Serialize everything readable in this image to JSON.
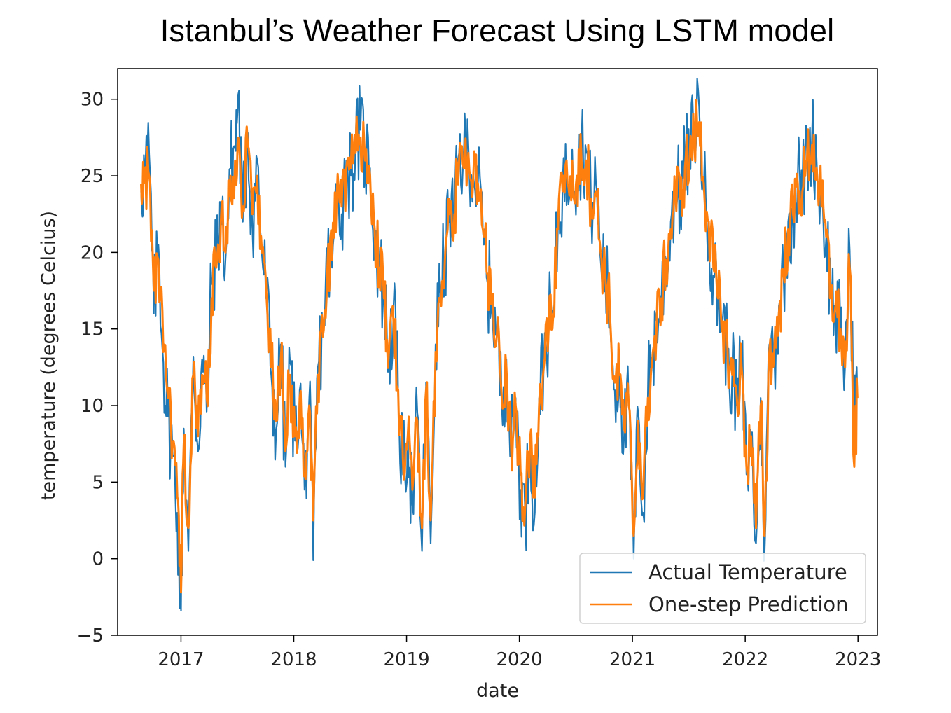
{
  "chart_data": {
    "type": "line",
    "title": "Istanbul’s Weather Forecast Using LSTM model",
    "xlabel": "date",
    "ylabel": "temperature (degrees Celcius)",
    "xlim": [
      "2016-06-10",
      "2023-03-05"
    ],
    "ylim": [
      -5,
      32
    ],
    "x_ticks": [
      "2017",
      "2018",
      "2019",
      "2020",
      "2021",
      "2022",
      "2023"
    ],
    "y_ticks": [
      -5,
      0,
      5,
      10,
      15,
      20,
      25,
      30
    ],
    "grid": false,
    "legend_position": "lower-right",
    "series": [
      {
        "name": "Actual Temperature",
        "color": "#1f77b4",
        "x": [
          "2016-08-25",
          "2016-09-05",
          "2016-09-20",
          "2016-10-05",
          "2016-10-20",
          "2016-11-05",
          "2016-11-20",
          "2016-12-05",
          "2016-12-20",
          "2017-01-01",
          "2017-01-10",
          "2017-01-25",
          "2017-02-10",
          "2017-02-25",
          "2017-03-10",
          "2017-03-25",
          "2017-04-10",
          "2017-04-25",
          "2017-05-10",
          "2017-05-25",
          "2017-06-10",
          "2017-06-25",
          "2017-07-05",
          "2017-07-20",
          "2017-08-05",
          "2017-08-20",
          "2017-09-05",
          "2017-09-20",
          "2017-10-05",
          "2017-10-20",
          "2017-11-05",
          "2017-11-20",
          "2017-12-05",
          "2017-12-20",
          "2018-01-05",
          "2018-01-20",
          "2018-02-05",
          "2018-02-20",
          "2018-03-05",
          "2018-03-20",
          "2018-04-05",
          "2018-04-20",
          "2018-05-05",
          "2018-05-20",
          "2018-06-05",
          "2018-06-20",
          "2018-07-05",
          "2018-07-20",
          "2018-08-05",
          "2018-08-20",
          "2018-09-05",
          "2018-09-20",
          "2018-10-05",
          "2018-10-20",
          "2018-11-05",
          "2018-11-20",
          "2018-12-05",
          "2018-12-20",
          "2019-01-05",
          "2019-01-20",
          "2019-02-05",
          "2019-02-20",
          "2019-03-05",
          "2019-03-20",
          "2019-04-05",
          "2019-04-20",
          "2019-05-05",
          "2019-05-20",
          "2019-06-05",
          "2019-06-20",
          "2019-07-05",
          "2019-07-20",
          "2019-08-05",
          "2019-08-20",
          "2019-09-05",
          "2019-09-20",
          "2019-10-05",
          "2019-10-20",
          "2019-11-05",
          "2019-11-20",
          "2019-12-05",
          "2019-12-20",
          "2020-01-05",
          "2020-01-20",
          "2020-02-05",
          "2020-02-20",
          "2020-03-05",
          "2020-03-20",
          "2020-04-05",
          "2020-04-20",
          "2020-05-05",
          "2020-05-20",
          "2020-06-05",
          "2020-06-20",
          "2020-07-05",
          "2020-07-20",
          "2020-08-05",
          "2020-08-20",
          "2020-09-05",
          "2020-09-20",
          "2020-10-05",
          "2020-10-20",
          "2020-11-05",
          "2020-11-20",
          "2020-12-05",
          "2020-12-20",
          "2021-01-05",
          "2021-01-20",
          "2021-02-05",
          "2021-02-20",
          "2021-03-05",
          "2021-03-20",
          "2021-04-05",
          "2021-04-20",
          "2021-05-05",
          "2021-05-20",
          "2021-06-05",
          "2021-06-20",
          "2021-07-05",
          "2021-07-20",
          "2021-08-05",
          "2021-08-20",
          "2021-09-05",
          "2021-09-20",
          "2021-10-05",
          "2021-10-20",
          "2021-11-05",
          "2021-11-20",
          "2021-12-05",
          "2021-12-20",
          "2022-01-05",
          "2022-01-20",
          "2022-02-05",
          "2022-02-20",
          "2022-03-05",
          "2022-03-20",
          "2022-04-05",
          "2022-04-20",
          "2022-05-05",
          "2022-05-20",
          "2022-06-05",
          "2022-06-20",
          "2022-07-05",
          "2022-07-20",
          "2022-08-05",
          "2022-08-20",
          "2022-09-05",
          "2022-09-20",
          "2022-10-05",
          "2022-10-20",
          "2022-11-05",
          "2022-11-20",
          "2022-12-05",
          "2022-12-20",
          "2022-12-30"
        ],
        "y": [
          24.0,
          25.4,
          26.4,
          16.0,
          20.5,
          12.8,
          9.3,
          6.8,
          3.0,
          -3.4,
          8.5,
          0.5,
          13.2,
          7.0,
          13.0,
          9.6,
          18.0,
          19.9,
          22.8,
          19.5,
          25.5,
          26.8,
          30.3,
          22.0,
          27.8,
          21.5,
          26.0,
          19.8,
          17.5,
          12.0,
          8.4,
          14.0,
          6.0,
          12.8,
          7.7,
          11.0,
          4.5,
          10.5,
          -0.1,
          12.5,
          15.0,
          19.5,
          19.0,
          24.2,
          22.5,
          26.0,
          25.0,
          27.0,
          28.0,
          26.5,
          25.5,
          21.0,
          19.0,
          17.0,
          13.0,
          16.5,
          10.5,
          5.5,
          8.0,
          3.5,
          9.5,
          0.5,
          11.5,
          1.0,
          14.0,
          17.5,
          19.5,
          23.0,
          22.0,
          26.5,
          26.0,
          27.0,
          25.0,
          24.5,
          21.5,
          18.0,
          17.0,
          14.5,
          10.0,
          13.0,
          7.0,
          10.5,
          4.5,
          2.5,
          8.0,
          3.0,
          10.5,
          13.0,
          15.5,
          15.8,
          22.0,
          24.5,
          24.5,
          26.7,
          25.0,
          27.0,
          26.5,
          23.0,
          24.5,
          19.5,
          18.5,
          16.0,
          11.0,
          12.5,
          8.0,
          10.0,
          0.0,
          9.5,
          3.0,
          11.0,
          13.0,
          15.5,
          17.0,
          19.5,
          22.0,
          24.5,
          23.5,
          26.0,
          26.0,
          28.5,
          29.5,
          24.0,
          22.0,
          18.5,
          17.0,
          15.5,
          13.5,
          12.0,
          10.0,
          13.0,
          5.5,
          8.0,
          1.0,
          10.5,
          0.5,
          14.0,
          13.5,
          16.5,
          18.5,
          22.0,
          22.5,
          25.0,
          24.0,
          26.5,
          27.5,
          26.0,
          23.0,
          21.0,
          17.5,
          16.0,
          15.0,
          12.5,
          20.2,
          9.5,
          10.5
        ]
      },
      {
        "name": "One-step Prediction",
        "color": "#ff7f0e",
        "x": [
          "2016-08-25",
          "2016-09-05",
          "2016-09-20",
          "2016-10-05",
          "2016-10-20",
          "2016-11-05",
          "2016-11-20",
          "2016-12-05",
          "2016-12-20",
          "2017-01-01",
          "2017-01-10",
          "2017-01-25",
          "2017-02-10",
          "2017-02-25",
          "2017-03-10",
          "2017-03-25",
          "2017-04-10",
          "2017-04-25",
          "2017-05-10",
          "2017-05-25",
          "2017-06-10",
          "2017-06-25",
          "2017-07-05",
          "2017-07-20",
          "2017-08-05",
          "2017-08-20",
          "2017-09-05",
          "2017-09-20",
          "2017-10-05",
          "2017-10-20",
          "2017-11-05",
          "2017-11-20",
          "2017-12-05",
          "2017-12-20",
          "2018-01-05",
          "2018-01-20",
          "2018-02-05",
          "2018-02-20",
          "2018-03-05",
          "2018-03-20",
          "2018-04-05",
          "2018-04-20",
          "2018-05-05",
          "2018-05-20",
          "2018-06-05",
          "2018-06-20",
          "2018-07-05",
          "2018-07-20",
          "2018-08-05",
          "2018-08-20",
          "2018-09-05",
          "2018-09-20",
          "2018-10-05",
          "2018-10-20",
          "2018-11-05",
          "2018-11-20",
          "2018-12-05",
          "2018-12-20",
          "2019-01-05",
          "2019-01-20",
          "2019-02-05",
          "2019-02-20",
          "2019-03-05",
          "2019-03-20",
          "2019-04-05",
          "2019-04-20",
          "2019-05-05",
          "2019-05-20",
          "2019-06-05",
          "2019-06-20",
          "2019-07-05",
          "2019-07-20",
          "2019-08-05",
          "2019-08-20",
          "2019-09-05",
          "2019-09-20",
          "2019-10-05",
          "2019-10-20",
          "2019-11-05",
          "2019-11-20",
          "2019-12-05",
          "2019-12-20",
          "2020-01-05",
          "2020-01-20",
          "2020-02-05",
          "2020-02-20",
          "2020-03-05",
          "2020-03-20",
          "2020-04-05",
          "2020-04-20",
          "2020-05-05",
          "2020-05-20",
          "2020-06-05",
          "2020-06-20",
          "2020-07-05",
          "2020-07-20",
          "2020-08-05",
          "2020-08-20",
          "2020-09-05",
          "2020-09-20",
          "2020-10-05",
          "2020-10-20",
          "2020-11-05",
          "2020-11-20",
          "2020-12-05",
          "2020-12-20",
          "2021-01-05",
          "2021-01-20",
          "2021-02-05",
          "2021-02-20",
          "2021-03-05",
          "2021-03-20",
          "2021-04-05",
          "2021-04-20",
          "2021-05-05",
          "2021-05-20",
          "2021-06-05",
          "2021-06-20",
          "2021-07-05",
          "2021-07-20",
          "2021-08-05",
          "2021-08-20",
          "2021-09-05",
          "2021-09-20",
          "2021-10-05",
          "2021-10-20",
          "2021-11-05",
          "2021-11-20",
          "2021-12-05",
          "2021-12-20",
          "2022-01-05",
          "2022-01-20",
          "2022-02-05",
          "2022-02-20",
          "2022-03-05",
          "2022-03-20",
          "2022-04-05",
          "2022-04-20",
          "2022-05-05",
          "2022-05-20",
          "2022-06-05",
          "2022-06-20",
          "2022-07-05",
          "2022-07-20",
          "2022-08-05",
          "2022-08-20",
          "2022-09-05",
          "2022-09-20",
          "2022-10-05",
          "2022-10-20",
          "2022-11-05",
          "2022-11-20",
          "2022-12-05",
          "2022-12-20",
          "2022-12-30"
        ],
        "y": [
          24.5,
          24.8,
          25.0,
          17.5,
          19.5,
          13.5,
          10.5,
          7.5,
          4.0,
          -2.2,
          7.5,
          2.0,
          12.0,
          8.0,
          12.0,
          10.5,
          17.0,
          19.0,
          22.0,
          20.0,
          25.0,
          26.0,
          27.5,
          23.0,
          27.0,
          22.5,
          25.0,
          20.0,
          17.0,
          12.5,
          9.0,
          13.0,
          7.0,
          12.0,
          8.0,
          10.5,
          5.5,
          10.0,
          2.5,
          12.0,
          14.5,
          19.0,
          19.5,
          23.5,
          23.0,
          25.5,
          25.5,
          26.5,
          27.5,
          26.0,
          25.0,
          21.5,
          19.0,
          17.0,
          13.5,
          15.5,
          11.0,
          6.5,
          8.0,
          4.5,
          9.0,
          2.0,
          11.0,
          2.5,
          13.5,
          17.0,
          19.5,
          22.5,
          22.5,
          26.0,
          25.5,
          26.5,
          25.0,
          24.5,
          21.5,
          18.5,
          17.0,
          14.5,
          10.5,
          12.5,
          7.5,
          10.0,
          5.5,
          3.5,
          8.0,
          4.0,
          10.0,
          12.5,
          15.0,
          16.0,
          21.5,
          24.0,
          24.5,
          26.0,
          25.0,
          26.0,
          26.0,
          23.5,
          24.0,
          20.0,
          18.5,
          16.0,
          11.5,
          12.0,
          8.5,
          10.0,
          1.5,
          9.0,
          4.0,
          10.5,
          12.5,
          15.0,
          17.0,
          19.5,
          21.5,
          24.0,
          23.5,
          25.5,
          26.0,
          27.5,
          28.5,
          24.5,
          22.0,
          19.0,
          17.0,
          15.5,
          13.5,
          12.0,
          10.5,
          12.5,
          6.0,
          8.0,
          2.0,
          10.0,
          1.5,
          13.5,
          13.5,
          16.0,
          18.5,
          21.5,
          22.5,
          24.5,
          24.0,
          26.0,
          27.0,
          25.5,
          23.0,
          21.0,
          17.5,
          16.5,
          15.0,
          12.5,
          19.0,
          6.0,
          10.5
        ]
      }
    ]
  }
}
